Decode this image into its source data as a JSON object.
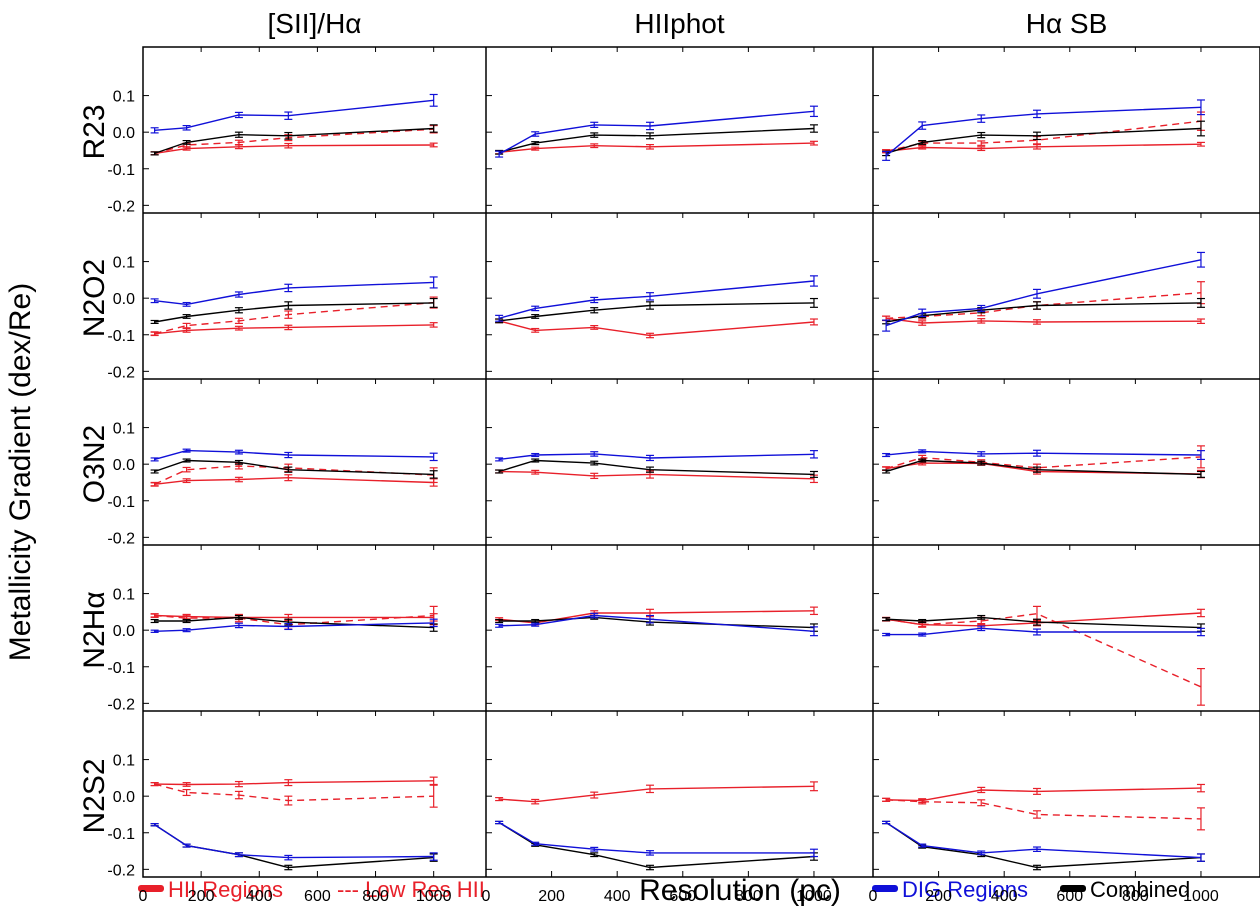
{
  "chart_data": {
    "type": "line",
    "ylabel": "Metallicity Gradient (dex/Re)",
    "xlabel": "Resolution (pc)",
    "xlim": [
      0,
      1180
    ],
    "ylim": [
      -0.21,
      0.2
    ],
    "xticks": [
      0,
      200,
      400,
      600,
      800,
      1000
    ],
    "xtick_labels": [
      "0",
      "200",
      "400",
      "600",
      "800",
      "1000"
    ],
    "yticks": [
      0.1,
      0.0,
      -0.1,
      -0.2
    ],
    "ytick_labels": [
      "0.1",
      "0.0",
      "-0.1",
      "-0.2"
    ],
    "columns": [
      "[SII]/Hα",
      "HIIphot",
      "Hα SB"
    ],
    "rows": [
      "R23",
      "N2O2",
      "O3N2",
      "N2Hα",
      "N2S2"
    ],
    "x": [
      40,
      150,
      330,
      500,
      1000
    ],
    "legend": {
      "hii": "HII Regions",
      "lowres": "--- Low Res HII",
      "dig": "DIG Regions",
      "combined": "Combined"
    },
    "colors": {
      "hii": "#e8202a",
      "lowres": "#e8202a",
      "dig": "#1010d8",
      "combined": "#000000"
    },
    "panels": [
      [
        {
          "hii": [
            -0.058,
            -0.045,
            -0.04,
            -0.037,
            -0.035
          ],
          "lowres": [
            -0.058,
            -0.035,
            -0.028,
            -0.015,
            0.008
          ],
          "dig": [
            0.005,
            0.012,
            0.047,
            0.045,
            0.087
          ],
          "combined": [
            -0.058,
            -0.028,
            -0.007,
            -0.01,
            0.01
          ],
          "err": {
            "hii": [
              0.004,
              0.004,
              0.005,
              0.006,
              0.005
            ],
            "lowres": [
              0.004,
              0.005,
              0.006,
              0.008,
              0.01
            ],
            "dig": [
              0.007,
              0.006,
              0.007,
              0.01,
              0.016
            ],
            "combined": [
              0.004,
              0.005,
              0.007,
              0.009,
              0.01
            ]
          }
        },
        {
          "hii": [
            -0.055,
            -0.045,
            -0.037,
            -0.04,
            -0.03
          ],
          "dig": [
            -0.06,
            -0.005,
            0.02,
            0.017,
            0.057
          ],
          "combined": [
            -0.055,
            -0.03,
            -0.008,
            -0.01,
            0.01
          ],
          "err": {
            "hii": [
              0.004,
              0.004,
              0.005,
              0.006,
              0.005
            ],
            "dig": [
              0.008,
              0.006,
              0.007,
              0.01,
              0.014
            ],
            "combined": [
              0.005,
              0.004,
              0.006,
              0.008,
              0.01
            ]
          }
        },
        {
          "hii": [
            -0.052,
            -0.042,
            -0.045,
            -0.04,
            -0.033
          ],
          "lowres": [
            -0.052,
            -0.03,
            -0.03,
            -0.022,
            0.03
          ],
          "dig": [
            -0.065,
            0.018,
            0.037,
            0.05,
            0.068
          ],
          "combined": [
            -0.058,
            -0.028,
            -0.008,
            -0.01,
            0.01
          ],
          "err": {
            "hii": [
              0.004,
              0.004,
              0.005,
              0.006,
              0.005
            ],
            "lowres": [
              0.004,
              0.005,
              0.006,
              0.01,
              0.025
            ],
            "dig": [
              0.012,
              0.01,
              0.01,
              0.01,
              0.02
            ],
            "combined": [
              0.006,
              0.005,
              0.007,
              0.01,
              0.02
            ]
          }
        }
      ],
      [
        {
          "hii": [
            -0.097,
            -0.088,
            -0.082,
            -0.08,
            -0.073
          ],
          "lowres": [
            -0.097,
            -0.075,
            -0.062,
            -0.045,
            -0.012
          ],
          "dig": [
            -0.007,
            -0.017,
            0.01,
            0.028,
            0.043
          ],
          "combined": [
            -0.065,
            -0.05,
            -0.033,
            -0.02,
            -0.013
          ],
          "err": {
            "hii": [
              0.004,
              0.005,
              0.005,
              0.006,
              0.006
            ],
            "lowres": [
              0.005,
              0.006,
              0.007,
              0.01,
              0.015
            ],
            "dig": [
              0.005,
              0.005,
              0.007,
              0.01,
              0.015
            ],
            "combined": [
              0.004,
              0.005,
              0.007,
              0.01,
              0.012
            ]
          }
        },
        {
          "hii": [
            -0.062,
            -0.088,
            -0.08,
            -0.102,
            -0.065
          ],
          "dig": [
            -0.055,
            -0.028,
            -0.005,
            0.005,
            0.047
          ],
          "combined": [
            -0.062,
            -0.05,
            -0.033,
            -0.02,
            -0.013
          ],
          "err": {
            "hii": [
              0.005,
              0.005,
              0.005,
              0.006,
              0.008
            ],
            "dig": [
              0.008,
              0.006,
              0.007,
              0.01,
              0.014
            ],
            "combined": [
              0.005,
              0.005,
              0.007,
              0.01,
              0.012
            ]
          }
        },
        {
          "hii": [
            -0.055,
            -0.068,
            -0.062,
            -0.065,
            -0.063
          ],
          "lowres": [
            -0.055,
            -0.05,
            -0.04,
            -0.02,
            0.015
          ],
          "dig": [
            -0.075,
            -0.04,
            -0.028,
            0.012,
            0.105
          ],
          "combined": [
            -0.065,
            -0.048,
            -0.033,
            -0.02,
            -0.013
          ],
          "err": {
            "hii": [
              0.006,
              0.006,
              0.006,
              0.006,
              0.006
            ],
            "lowres": [
              0.006,
              0.007,
              0.008,
              0.01,
              0.03
            ],
            "dig": [
              0.015,
              0.01,
              0.008,
              0.012,
              0.02
            ],
            "combined": [
              0.005,
              0.005,
              0.007,
              0.01,
              0.012
            ]
          }
        }
      ],
      [
        {
          "hii": [
            -0.055,
            -0.045,
            -0.042,
            -0.037,
            -0.05
          ],
          "lowres": [
            -0.055,
            -0.015,
            -0.005,
            -0.01,
            -0.03
          ],
          "dig": [
            0.013,
            0.037,
            0.033,
            0.025,
            0.02
          ],
          "combined": [
            -0.02,
            0.01,
            0.005,
            -0.015,
            -0.028
          ],
          "err": {
            "hii": [
              0.004,
              0.005,
              0.006,
              0.008,
              0.01
            ],
            "lowres": [
              0.005,
              0.006,
              0.008,
              0.01,
              0.02
            ],
            "dig": [
              0.004,
              0.004,
              0.005,
              0.007,
              0.01
            ],
            "combined": [
              0.004,
              0.004,
              0.005,
              0.007,
              0.01
            ]
          }
        },
        {
          "hii": [
            -0.02,
            -0.022,
            -0.032,
            -0.028,
            -0.04
          ],
          "dig": [
            0.013,
            0.025,
            0.028,
            0.017,
            0.027
          ],
          "combined": [
            -0.02,
            0.01,
            0.003,
            -0.015,
            -0.028
          ],
          "err": {
            "hii": [
              0.004,
              0.005,
              0.007,
              0.01,
              0.01
            ],
            "dig": [
              0.004,
              0.004,
              0.006,
              0.007,
              0.01
            ],
            "combined": [
              0.004,
              0.004,
              0.005,
              0.007,
              0.008
            ]
          }
        },
        {
          "hii": [
            -0.012,
            0.003,
            0.002,
            -0.02,
            -0.027
          ],
          "lowres": [
            -0.012,
            0.018,
            0.005,
            -0.01,
            0.02
          ],
          "dig": [
            0.025,
            0.035,
            0.028,
            0.03,
            0.025
          ],
          "combined": [
            -0.02,
            0.01,
            0.003,
            -0.015,
            -0.028
          ],
          "err": {
            "hii": [
              0.004,
              0.005,
              0.005,
              0.007,
              0.01
            ],
            "lowres": [
              0.005,
              0.006,
              0.007,
              0.01,
              0.03
            ],
            "dig": [
              0.004,
              0.004,
              0.006,
              0.008,
              0.012
            ],
            "combined": [
              0.004,
              0.004,
              0.005,
              0.007,
              0.008
            ]
          }
        }
      ],
      [
        {
          "hii": [
            0.04,
            0.037,
            0.035,
            0.035,
            0.035
          ],
          "lowres": [
            0.04,
            0.033,
            0.033,
            0.015,
            0.04
          ],
          "dig": [
            -0.003,
            0.0,
            0.013,
            0.01,
            0.02
          ],
          "combined": [
            0.025,
            0.025,
            0.035,
            0.022,
            0.007
          ],
          "err": {
            "hii": [
              0.004,
              0.006,
              0.006,
              0.008,
              0.01
            ],
            "lowres": [
              0.005,
              0.008,
              0.01,
              0.012,
              0.025
            ],
            "dig": [
              0.003,
              0.004,
              0.006,
              0.008,
              0.01
            ],
            "combined": [
              0.004,
              0.004,
              0.005,
              0.008,
              0.01
            ]
          }
        },
        {
          "hii": [
            0.03,
            0.02,
            0.047,
            0.047,
            0.053
          ],
          "dig": [
            0.012,
            0.015,
            0.04,
            0.03,
            -0.003
          ],
          "combined": [
            0.025,
            0.025,
            0.035,
            0.022,
            0.007
          ],
          "err": {
            "hii": [
              0.004,
              0.005,
              0.006,
              0.01,
              0.01
            ],
            "dig": [
              0.004,
              0.004,
              0.006,
              0.01,
              0.012
            ],
            "combined": [
              0.004,
              0.004,
              0.005,
              0.008,
              0.01
            ]
          }
        },
        {
          "hii": [
            0.03,
            0.015,
            0.012,
            0.02,
            0.047
          ],
          "lowres": [
            0.03,
            0.015,
            0.025,
            0.045,
            -0.155
          ],
          "dig": [
            -0.012,
            -0.012,
            0.005,
            -0.005,
            -0.005
          ],
          "combined": [
            0.03,
            0.025,
            0.035,
            0.022,
            0.007
          ],
          "err": {
            "hii": [
              0.004,
              0.005,
              0.006,
              0.008,
              0.01
            ],
            "lowres": [
              0.005,
              0.007,
              0.01,
              0.02,
              0.05
            ],
            "dig": [
              0.003,
              0.004,
              0.006,
              0.008,
              0.01
            ],
            "combined": [
              0.004,
              0.004,
              0.005,
              0.008,
              0.01
            ]
          }
        }
      ],
      [
        {
          "hii": [
            0.033,
            0.032,
            0.033,
            0.037,
            0.042
          ],
          "lowres": [
            0.033,
            0.01,
            0.003,
            -0.012,
            0.0
          ],
          "dig": [
            -0.078,
            -0.135,
            -0.16,
            -0.168,
            -0.165
          ],
          "combined": [
            -0.078,
            -0.135,
            -0.16,
            -0.195,
            -0.168
          ],
          "err": {
            "hii": [
              0.004,
              0.005,
              0.007,
              0.008,
              0.01
            ],
            "lowres": [
              0.004,
              0.008,
              0.01,
              0.012,
              0.03
            ],
            "dig": [
              0.003,
              0.004,
              0.005,
              0.006,
              0.01
            ],
            "combined": [
              0.003,
              0.004,
              0.005,
              0.006,
              0.01
            ]
          }
        },
        {
          "hii": [
            -0.008,
            -0.015,
            0.003,
            0.02,
            0.027
          ],
          "dig": [
            -0.072,
            -0.13,
            -0.145,
            -0.155,
            -0.155
          ],
          "combined": [
            -0.072,
            -0.133,
            -0.16,
            -0.195,
            -0.165
          ],
          "err": {
            "hii": [
              0.004,
              0.006,
              0.008,
              0.01,
              0.012
            ],
            "dig": [
              0.003,
              0.004,
              0.005,
              0.006,
              0.01
            ],
            "combined": [
              0.003,
              0.004,
              0.005,
              0.006,
              0.01
            ]
          }
        },
        {
          "hii": [
            -0.01,
            -0.012,
            0.017,
            0.013,
            0.022
          ],
          "lowres": [
            -0.01,
            -0.015,
            -0.018,
            -0.05,
            -0.062
          ],
          "dig": [
            -0.072,
            -0.135,
            -0.155,
            -0.145,
            -0.168
          ],
          "combined": [
            -0.072,
            -0.138,
            -0.16,
            -0.195,
            -0.168
          ],
          "err": {
            "hii": [
              0.004,
              0.005,
              0.007,
              0.008,
              0.01
            ],
            "lowres": [
              0.004,
              0.006,
              0.008,
              0.01,
              0.03
            ],
            "dig": [
              0.003,
              0.004,
              0.005,
              0.006,
              0.01
            ],
            "combined": [
              0.003,
              0.004,
              0.005,
              0.006,
              0.01
            ]
          }
        }
      ]
    ]
  }
}
